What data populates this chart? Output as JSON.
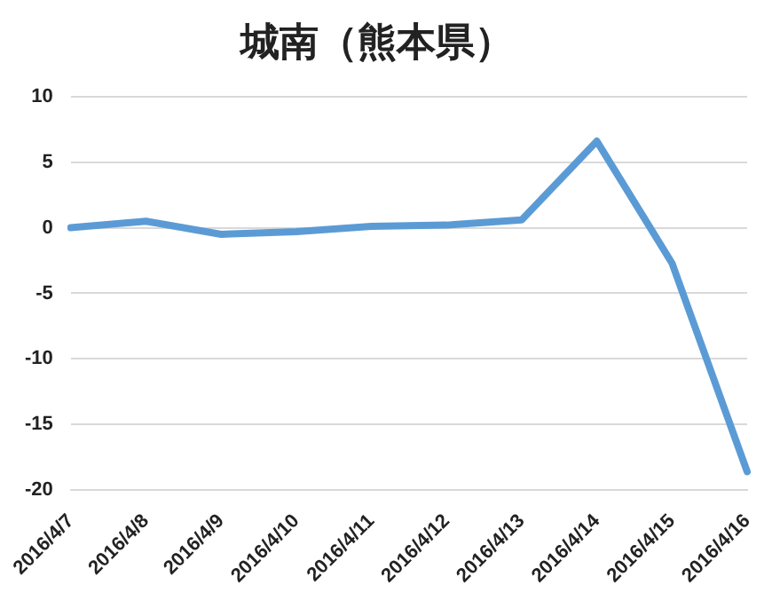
{
  "chart_data": {
    "type": "line",
    "title": "城南（熊本県）",
    "categories": [
      "2016/4/7",
      "2016/4/8",
      "2016/4/9",
      "2016/4/10",
      "2016/4/11",
      "2016/4/12",
      "2016/4/13",
      "2016/4/14",
      "2016/4/15",
      "2016/4/16"
    ],
    "series": [
      {
        "color": "#5b9bd5",
        "values": [
          0,
          0.5,
          -0.5,
          -0.3,
          0.1,
          0.2,
          0.6,
          6.6,
          -2.7,
          -18.6
        ]
      }
    ],
    "ylim": [
      -20,
      10
    ],
    "yticks": [
      -20,
      -15,
      -10,
      -5,
      0,
      5,
      10
    ],
    "grid": "y",
    "legend": false,
    "marker": "none",
    "line_style": "solid"
  }
}
